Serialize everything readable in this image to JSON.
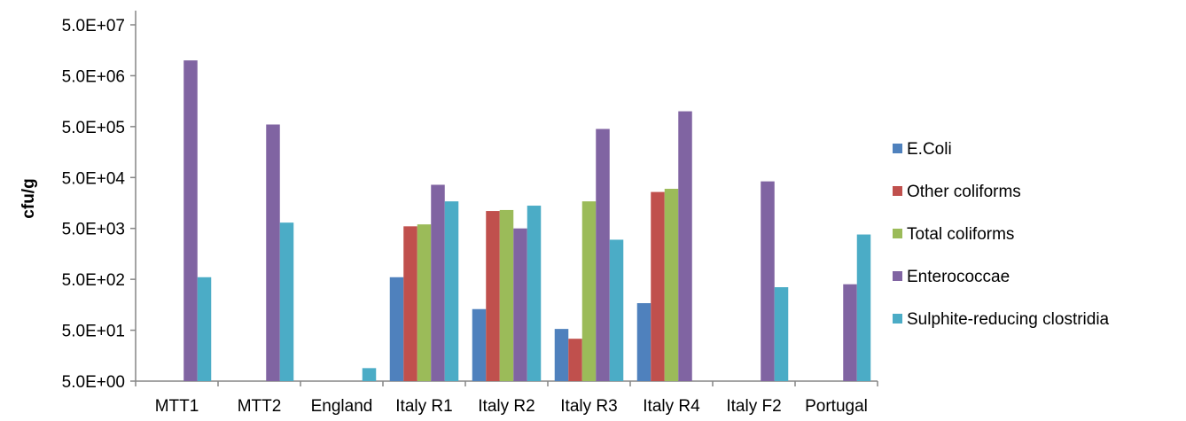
{
  "chart_data": {
    "type": "bar",
    "title": "",
    "xlabel": "",
    "ylabel": "cfu/g",
    "y_scale": "log",
    "ylim": [
      5,
      50000000
    ],
    "y_ticks": [
      "5.0E+00",
      "5.0E+01",
      "5.0E+02",
      "5.0E+03",
      "5.0E+04",
      "5.0E+05",
      "5.0E+06",
      "5.0E+07"
    ],
    "grid": false,
    "legend_position": "right",
    "categories": [
      "MTT1",
      "MTT2",
      "England",
      "Italy R1",
      "Italy R2",
      "Italy R3",
      "Italy R4",
      "Italy F2",
      "Portugal"
    ],
    "series": [
      {
        "name": "E.Coli",
        "color": "#4F81BD",
        "values": [
          null,
          null,
          null,
          550,
          130,
          53,
          170,
          null,
          null
        ]
      },
      {
        "name": "Other coliforms",
        "color": "#C0504D",
        "values": [
          null,
          null,
          null,
          5500,
          11000,
          34,
          26000,
          null,
          null
        ]
      },
      {
        "name": "Total coliforms",
        "color": "#9BBB59",
        "values": [
          null,
          null,
          null,
          6000,
          11500,
          17000,
          30000,
          null,
          null
        ]
      },
      {
        "name": "Enterococcae",
        "color": "#8064A2",
        "values": [
          10000000,
          550000,
          null,
          36000,
          5000,
          450000,
          1000000,
          42000,
          400
        ]
      },
      {
        "name": "Sulphite-reducing clostridia",
        "color": "#4BACC6",
        "values": [
          550,
          6500,
          9,
          17000,
          14000,
          3000,
          null,
          350,
          3800
        ]
      }
    ],
    "series_overrides_note": ""
  }
}
